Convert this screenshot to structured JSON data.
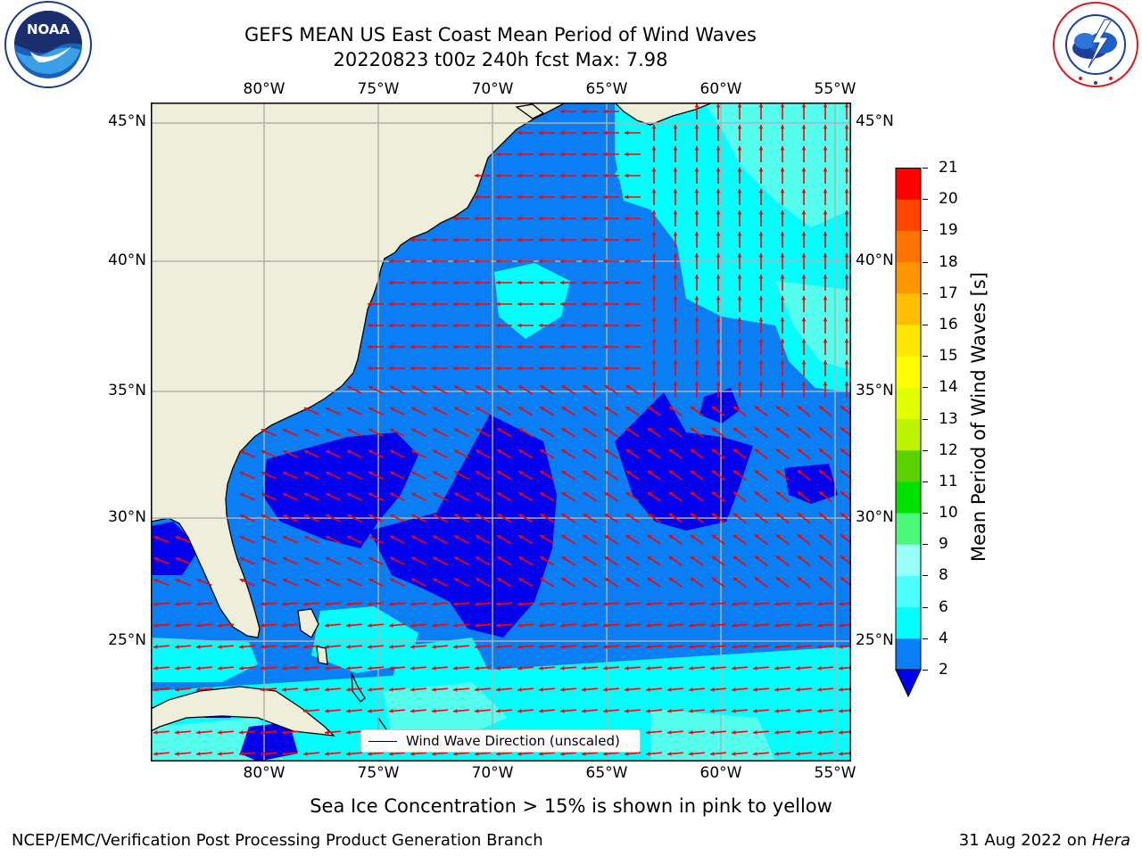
{
  "title": {
    "line1": "GEFS MEAN US East Coast Mean Period of Wind Waves",
    "line2": "20220823 t00z 240h fcst   Max: 7.98"
  },
  "logos": {
    "left": {
      "name": "NOAA",
      "ring_text": "NATIONAL OCEANIC AND ATMOSPHERIC ADMINISTRATION · U.S. DEPARTMENT OF COMMERCE"
    },
    "right": {
      "name": "NATIONAL WEATHER SERVICE"
    }
  },
  "map": {
    "lon_labels": [
      "80°W",
      "75°W",
      "70°W",
      "65°W",
      "60°W",
      "55°W"
    ],
    "lat_labels": [
      "45°N",
      "40°N",
      "35°N",
      "30°N",
      "25°N"
    ],
    "legend_label": "Wind Wave Direction (unscaled)",
    "colors": {
      "land": "#efeedb",
      "coast": "#000000",
      "grid": "#b0b0b0",
      "arrow": "#ff0000",
      "c0_2": "#0000ee",
      "c2_4": "#0a7ef5",
      "c4_6": "#00ffff",
      "c6_8": "#55ffee"
    }
  },
  "colorbar": {
    "label": "Mean Period of Wind Waves [s]",
    "ticks": [
      "2",
      "4",
      "6",
      "8",
      "9",
      "10",
      "11",
      "12",
      "13",
      "14",
      "15",
      "16",
      "17",
      "18",
      "19",
      "20",
      "21"
    ],
    "colors": [
      "#0a7ef5",
      "#00ffff",
      "#4dffff",
      "#9afff9",
      "#4df97a",
      "#00e100",
      "#5ad200",
      "#bef400",
      "#e1ff00",
      "#ffff00",
      "#ffe600",
      "#ffbe00",
      "#ff9600",
      "#ff7300",
      "#ff4600",
      "#ff0000"
    ],
    "extend_color": "#0000ee"
  },
  "footer": {
    "ice_note": "Sea Ice Concentration > 15% is shown in pink to yellow",
    "credit": "NCEP/EMC/Verification Post Processing Product Generation Branch",
    "date": "31 Aug 2022 on ",
    "machine": "Hera"
  }
}
